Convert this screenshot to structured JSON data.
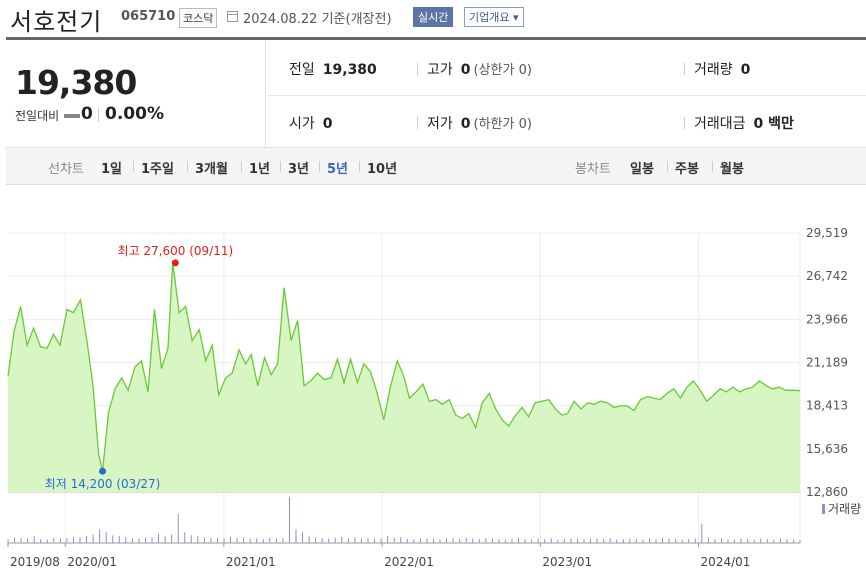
{
  "header": {
    "company_name": "서호전기",
    "stock_code": "065710",
    "market": "코스닥",
    "date": "2024.08.22",
    "basis": "기준(개장전)",
    "live_button": "실시간",
    "company_info_button": "기업개요 ▾"
  },
  "quote": {
    "price": "19,380",
    "change_label": "전일대비",
    "change_value": "0",
    "change_pct": "0.00%"
  },
  "info": {
    "prev_close_label": "전일",
    "prev_close": "19,380",
    "high_label": "고가",
    "high": "0",
    "high_limit": "(상한가 0)",
    "volume_label": "거래량",
    "volume": "0",
    "open_label": "시가",
    "open": "0",
    "low_label": "저가",
    "low": "0",
    "low_limit": "(하한가 0)",
    "amount_label": "거래대금",
    "amount": "0 백만"
  },
  "period_bar": {
    "line_label": "선차트",
    "periods": [
      "1일",
      "1주일",
      "3개월",
      "1년",
      "3년",
      "5년",
      "10년"
    ],
    "active_period": "5년",
    "candle_label": "봉차트",
    "candles": [
      "일봉",
      "주봉",
      "월봉"
    ]
  },
  "chart_data": {
    "type": "area",
    "title": "",
    "ylim": [
      12860,
      29519
    ],
    "y_ticks": [
      "29,519",
      "26,742",
      "23,966",
      "21,189",
      "18,413",
      "15,636",
      "12,860"
    ],
    "x_ticks": [
      "2019/08",
      "2020/01",
      "2021/01",
      "2022/01",
      "2023/01",
      "2024/01"
    ],
    "x_start": "2019-08-22",
    "x_end": "2024-08-22",
    "max_label": "최고 27,600 (09/11)",
    "max_point": {
      "date": "2020-09-11",
      "value": 27600
    },
    "min_label": "최저 14,200 (03/27)",
    "min_point": {
      "date": "2020-03-27",
      "value": 14200
    },
    "volume_legend": "거래량",
    "line_color": "#66cc33",
    "fill_color": "#d8f5c4",
    "series": [
      {
        "x": [
          "2019-08-22",
          "2019-09-05",
          "2019-09-20",
          "2019-10-05",
          "2019-10-20",
          "2019-11-05",
          "2019-11-20",
          "2019-12-05",
          "2019-12-20",
          "2020-01-05",
          "2020-01-20",
          "2020-02-05",
          "2020-02-20",
          "2020-03-05",
          "2020-03-18",
          "2020-03-27",
          "2020-04-10",
          "2020-04-25",
          "2020-05-10",
          "2020-05-25",
          "2020-06-10",
          "2020-06-25",
          "2020-07-10",
          "2020-07-25",
          "2020-08-10",
          "2020-08-25",
          "2020-09-05",
          "2020-09-20",
          "2020-10-05",
          "2020-10-20",
          "2020-11-05",
          "2020-11-20",
          "2020-12-05",
          "2020-12-20",
          "2021-01-05",
          "2021-01-20",
          "2021-02-05",
          "2021-02-20",
          "2021-03-05",
          "2021-03-20",
          "2021-04-05",
          "2021-04-20",
          "2021-05-05",
          "2021-05-20",
          "2021-06-05",
          "2021-06-20",
          "2021-07-05",
          "2021-07-20",
          "2021-08-05",
          "2021-08-20",
          "2021-09-05",
          "2021-09-20",
          "2021-10-05",
          "2021-10-20",
          "2021-11-05",
          "2021-11-20",
          "2021-12-05",
          "2021-12-20",
          "2022-01-05",
          "2022-01-20",
          "2022-02-05",
          "2022-02-20",
          "2022-03-05",
          "2022-03-20",
          "2022-04-05",
          "2022-04-20",
          "2022-05-05",
          "2022-05-20",
          "2022-06-05",
          "2022-06-20",
          "2022-07-05",
          "2022-07-20",
          "2022-08-05",
          "2022-08-20",
          "2022-09-05",
          "2022-09-20",
          "2022-10-05",
          "2022-10-20",
          "2022-11-05",
          "2022-11-20",
          "2022-12-05",
          "2022-12-20",
          "2023-01-05",
          "2023-01-20",
          "2023-02-05",
          "2023-02-20",
          "2023-03-05",
          "2023-03-20",
          "2023-04-05",
          "2023-04-20",
          "2023-05-05",
          "2023-05-20",
          "2023-06-05",
          "2023-06-20",
          "2023-07-05",
          "2023-07-20",
          "2023-08-05",
          "2023-08-20",
          "2023-09-05",
          "2023-09-20",
          "2023-10-05",
          "2023-10-20",
          "2023-11-05",
          "2023-11-20",
          "2023-12-05",
          "2023-12-20",
          "2024-01-05",
          "2024-01-20",
          "2024-02-05",
          "2024-02-20",
          "2024-03-05",
          "2024-03-20",
          "2024-04-05",
          "2024-04-20",
          "2024-05-05",
          "2024-05-20",
          "2024-06-05",
          "2024-06-20",
          "2024-07-05",
          "2024-07-20",
          "2024-08-05",
          "2024-08-22"
        ],
        "values": [
          20300,
          23200,
          24800,
          22300,
          23400,
          22200,
          22100,
          23000,
          22300,
          24600,
          24400,
          25200,
          22600,
          19700,
          15300,
          14200,
          18000,
          19500,
          20200,
          19400,
          20900,
          21300,
          19300,
          24600,
          20800,
          22100,
          27600,
          24400,
          24800,
          22600,
          23300,
          21300,
          22300,
          19100,
          20200,
          20500,
          22000,
          21100,
          21700,
          19700,
          21500,
          20400,
          21100,
          26000,
          22600,
          23900,
          19700,
          20000,
          20500,
          20100,
          20200,
          21400,
          19900,
          21400,
          19900,
          21100,
          20600,
          19300,
          17500,
          19600,
          21300,
          20300,
          18900,
          19300,
          19800,
          18700,
          18800,
          18500,
          18800,
          17800,
          17600,
          17900,
          17000,
          18600,
          19200,
          18200,
          17500,
          17100,
          17800,
          18300,
          17700,
          18600,
          18700,
          18800,
          18200,
          17800,
          17900,
          18700,
          18200,
          18600,
          18500,
          18700,
          18600,
          18300,
          18400,
          18400,
          18100,
          18800,
          19000,
          18900,
          18800,
          19200,
          19500,
          18900,
          19600,
          20000,
          19400,
          18700,
          19100,
          19500,
          19300,
          19600,
          19300,
          19500,
          19600,
          20000,
          19700,
          19500,
          19600,
          19400,
          19400,
          19380
        ]
      }
    ],
    "volume": {
      "values": [
        8,
        12,
        10,
        9,
        14,
        8,
        7,
        11,
        9,
        10,
        13,
        12,
        15,
        18,
        28,
        22,
        16,
        14,
        12,
        10,
        9,
        11,
        12,
        20,
        14,
        18,
        60,
        22,
        16,
        14,
        12,
        10,
        11,
        9,
        13,
        10,
        12,
        9,
        10,
        8,
        11,
        9,
        10,
        95,
        28,
        22,
        14,
        12,
        10,
        9,
        11,
        13,
        10,
        12,
        9,
        10,
        8,
        9,
        14,
        11,
        12,
        9,
        8,
        10,
        9,
        8,
        7,
        9,
        10,
        8,
        11,
        9,
        8,
        10,
        9,
        8,
        7,
        9,
        10,
        8,
        7,
        9,
        8,
        10,
        7,
        8,
        9,
        8,
        7,
        8,
        9,
        8,
        10,
        7,
        8,
        9,
        8,
        7,
        9,
        8,
        10,
        9,
        8,
        7,
        8,
        9,
        40,
        12,
        8,
        9,
        8,
        7,
        9,
        8,
        7,
        9,
        8,
        7,
        9,
        8,
        7,
        6
      ]
    }
  }
}
